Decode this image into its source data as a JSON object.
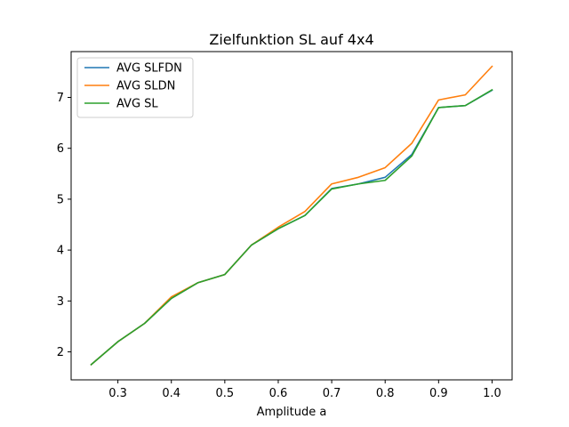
{
  "chart_data": {
    "type": "line",
    "title": "Zielfunktion SL auf 4x4",
    "xlabel": "Amplitude a",
    "ylabel": "",
    "xlim": [
      0.2125,
      1.0375
    ],
    "ylim": [
      1.45,
      7.9
    ],
    "xticks": [
      0.3,
      0.4,
      0.5,
      0.6,
      0.7,
      0.8,
      0.9,
      1.0
    ],
    "xtick_labels": [
      "0.3",
      "0.4",
      "0.5",
      "0.6",
      "0.7",
      "0.8",
      "0.9",
      "1.0"
    ],
    "yticks": [
      2,
      3,
      4,
      5,
      6,
      7
    ],
    "ytick_labels": [
      "2",
      "3",
      "4",
      "5",
      "6",
      "7"
    ],
    "grid": false,
    "legend_position": "top-left",
    "x": [
      0.25,
      0.3,
      0.35,
      0.4,
      0.45,
      0.5,
      0.55,
      0.6,
      0.65,
      0.7,
      0.75,
      0.8,
      0.85,
      0.9,
      0.95,
      1.0
    ],
    "series": [
      {
        "name": "AVG SLFDN",
        "color": "#1f77b4",
        "values": [
          1.75,
          2.2,
          2.56,
          3.05,
          3.36,
          3.52,
          4.1,
          4.42,
          4.68,
          5.21,
          5.3,
          5.43,
          5.88,
          6.8,
          6.84,
          7.14
        ]
      },
      {
        "name": "AVG SLDN",
        "color": "#ff7f0e",
        "values": [
          1.75,
          2.2,
          2.56,
          3.08,
          3.36,
          3.52,
          4.1,
          4.45,
          4.76,
          5.3,
          5.43,
          5.62,
          6.1,
          6.95,
          7.05,
          7.61
        ]
      },
      {
        "name": "AVG SL",
        "color": "#2ca02c",
        "values": [
          1.75,
          2.2,
          2.56,
          3.05,
          3.36,
          3.52,
          4.1,
          4.42,
          4.68,
          5.2,
          5.3,
          5.37,
          5.85,
          6.8,
          6.84,
          7.15
        ]
      }
    ]
  }
}
